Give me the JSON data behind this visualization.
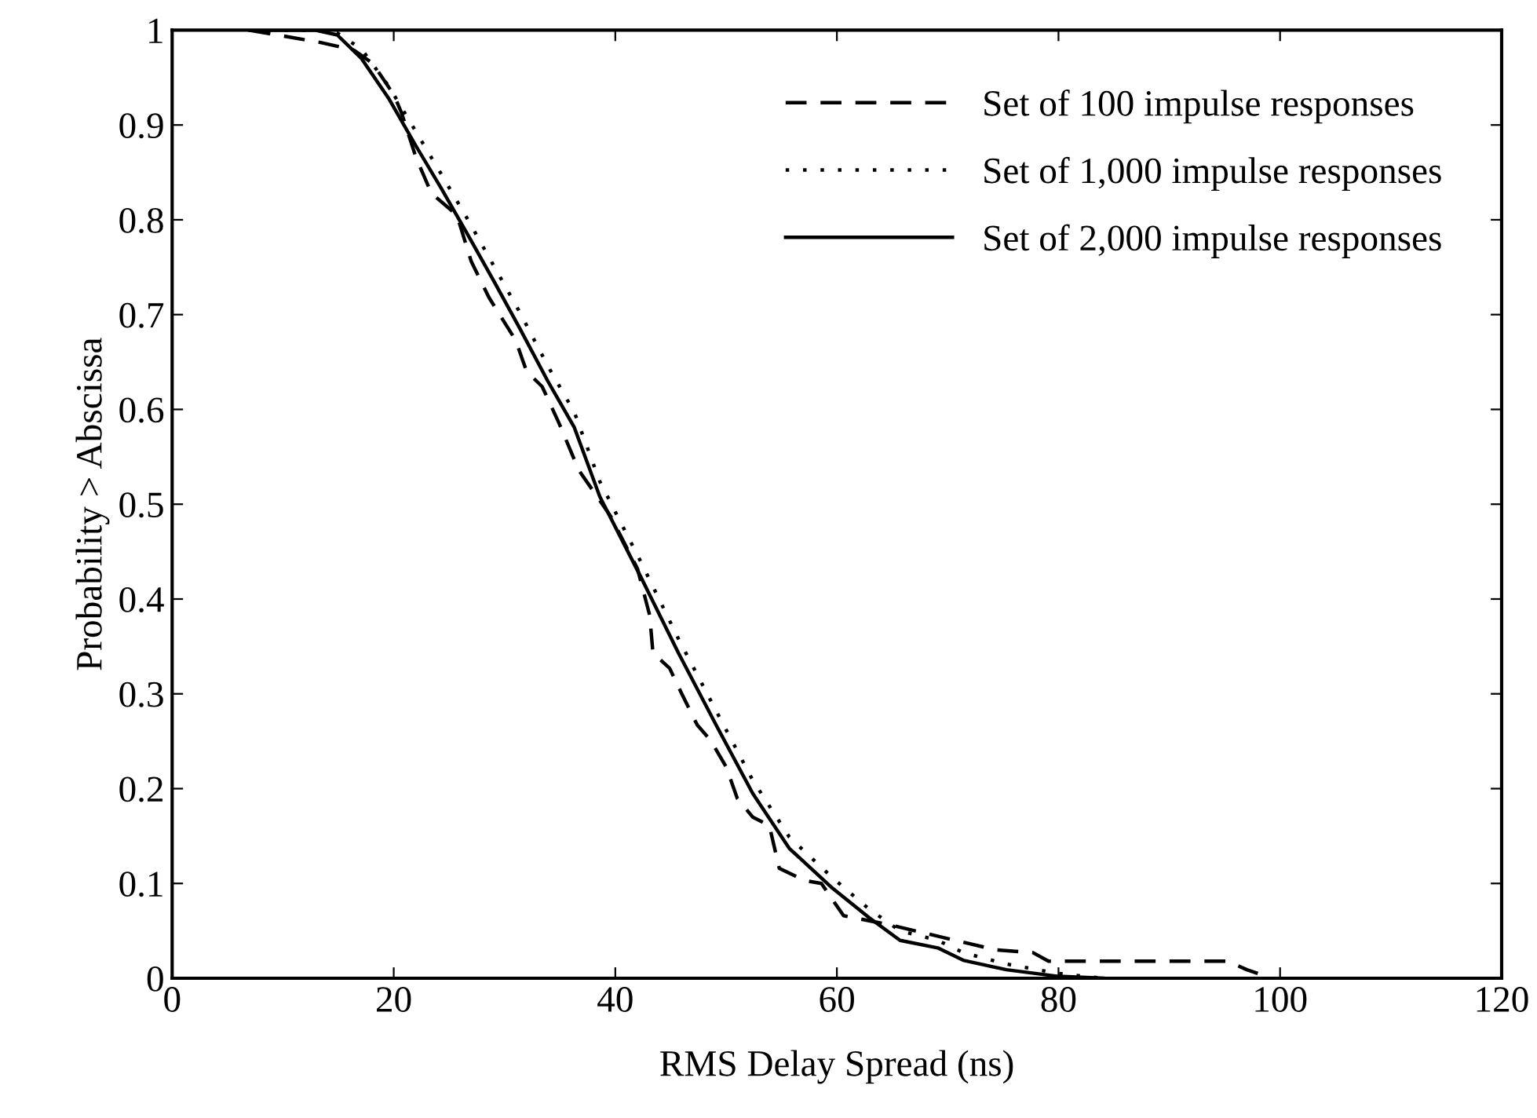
{
  "chart_data": {
    "type": "line",
    "xlabel": "RMS Delay Spread (ns)",
    "ylabel": "Probability > Abscissa",
    "xlim": [
      0,
      120
    ],
    "ylim": [
      0,
      1
    ],
    "xticks": [
      0,
      20,
      40,
      60,
      80,
      100,
      120
    ],
    "yticks": [
      0,
      0.1,
      0.2,
      0.3,
      0.4,
      0.5,
      0.6,
      0.7,
      0.8,
      0.9,
      1
    ],
    "grid": false,
    "legend": "top right",
    "marker": "none",
    "series": [
      {
        "name": "Set of 100 impulse responses",
        "color": "#000000",
        "line_style": "dashed",
        "x": [
          7,
          13.4,
          16.4,
          18.1,
          20,
          20.7,
          22,
          23.4,
          25.7,
          27,
          28.6,
          31,
          32,
          33.4,
          34.9,
          36.7,
          39.6,
          42,
          43.1,
          43.4,
          44.9,
          46,
          47.4,
          48.6,
          50,
          51,
          52.4,
          53.9,
          54.8,
          57.1,
          58.6,
          60.6,
          64.9,
          69.6,
          74.3,
          77.7,
          79.1,
          95.3,
          97,
          98
        ],
        "values": [
          1,
          0.987,
          0.979,
          0.965,
          0.932,
          0.913,
          0.866,
          0.828,
          0.805,
          0.756,
          0.718,
          0.673,
          0.64,
          0.624,
          0.586,
          0.536,
          0.487,
          0.432,
          0.383,
          0.343,
          0.327,
          0.3,
          0.267,
          0.251,
          0.223,
          0.19,
          0.17,
          0.161,
          0.116,
          0.103,
          0.1,
          0.066,
          0.056,
          0.043,
          0.03,
          0.027,
          0.018,
          0.018,
          0.009,
          0.005
        ]
      },
      {
        "name": "Set of 1,000 impulse responses",
        "color": "#000000",
        "line_style": "dotted",
        "x": [
          7,
          12.9,
          14.9,
          17.1,
          19.6,
          22,
          24.3,
          26.7,
          29.1,
          31.4,
          33.9,
          36.3,
          38.6,
          42.4,
          45.7,
          49.1,
          52.4,
          55.7,
          59.6,
          62.9,
          65.7,
          69.1,
          71.4,
          75.3,
          78.6,
          80,
          84
        ],
        "values": [
          1,
          1,
          0.997,
          0.98,
          0.94,
          0.893,
          0.848,
          0.8,
          0.75,
          0.702,
          0.646,
          0.597,
          0.524,
          0.437,
          0.358,
          0.282,
          0.209,
          0.149,
          0.106,
          0.073,
          0.05,
          0.04,
          0.027,
          0.015,
          0.008,
          0.005,
          0
        ]
      },
      {
        "name": "Set of 2,000 impulse responses",
        "color": "#000000",
        "line_style": "solid",
        "x": [
          7,
          12.9,
          14.9,
          17.1,
          19.6,
          22,
          24.3,
          26.7,
          29.1,
          31.4,
          33.9,
          36.3,
          38.6,
          42.4,
          45.7,
          49.1,
          52.4,
          55.7,
          59.6,
          62.9,
          65.7,
          69.1,
          71.4,
          75.3,
          78.6,
          80,
          84
        ],
        "values": [
          1,
          1,
          0.995,
          0.97,
          0.927,
          0.878,
          0.833,
          0.784,
          0.734,
          0.685,
          0.63,
          0.581,
          0.508,
          0.421,
          0.343,
          0.267,
          0.195,
          0.137,
          0.095,
          0.064,
          0.04,
          0.032,
          0.019,
          0.009,
          0.004,
          0.002,
          0
        ]
      }
    ]
  }
}
